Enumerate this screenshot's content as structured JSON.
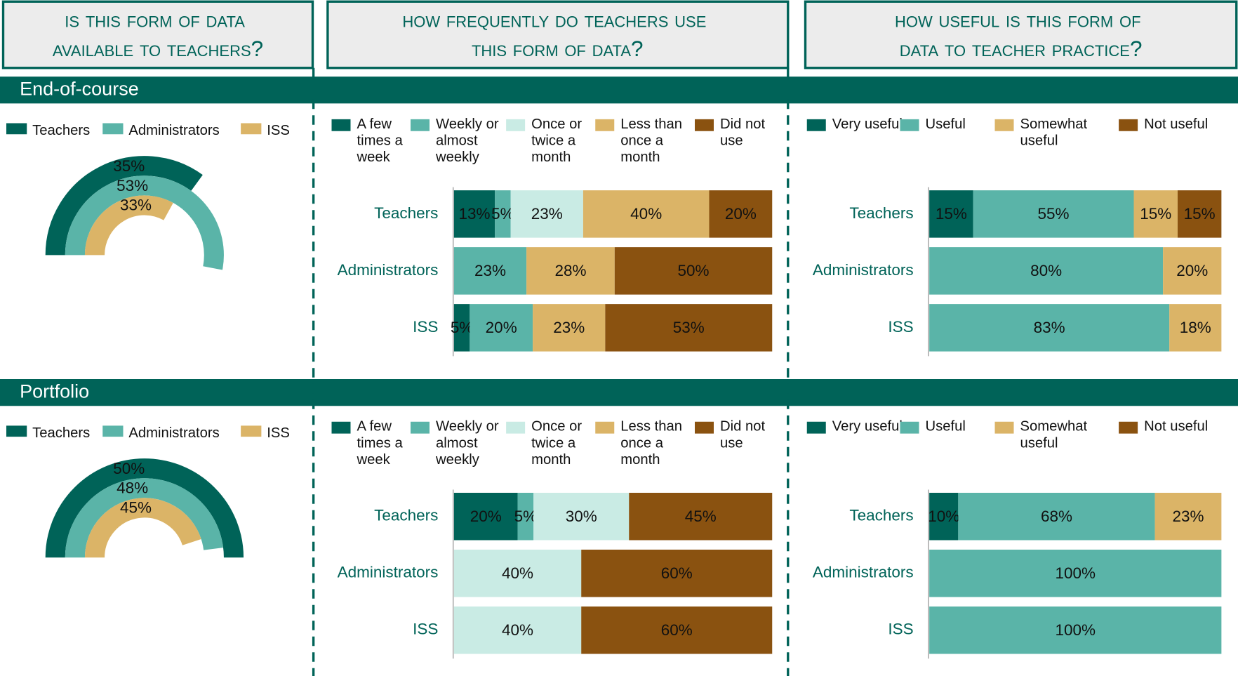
{
  "headers": [
    "Is this form of data available to teachers?",
    "How frequently do teachers use this form of data?",
    "How useful is this form of data to teacher practice?"
  ],
  "sections": [
    "End-of-course",
    "Portfolio"
  ],
  "chart_data": [
    {
      "type": "radial",
      "series": [
        {
          "name": "Teachers",
          "color": "#006358",
          "values": [
            35
          ],
          "value_labels": [
            "35%"
          ]
        },
        {
          "name": "Administrators",
          "color": "#5ab4a8",
          "values": [
            53
          ],
          "value_labels": [
            "53%"
          ]
        },
        {
          "name": "ISS",
          "color": "#dbb467",
          "values": [
            33
          ],
          "value_labels": [
            "33%"
          ]
        }
      ]
    },
    {
      "type": "stacked_bar",
      "categories": [
        "Teachers",
        "Administrators",
        "ISS"
      ],
      "series": [
        {
          "name": "A few times a week",
          "color": "#006358",
          "values": [
            13,
            null,
            5
          ],
          "value_labels": [
            "13%",
            null,
            "5%"
          ]
        },
        {
          "name": "Weekly or almost weekly",
          "color": "#5ab4a8",
          "values": [
            5,
            23,
            20
          ],
          "value_labels": [
            "5%",
            "23%",
            "20%"
          ]
        },
        {
          "name": "Once or twice a month",
          "color": "#c9ebe4",
          "values": [
            23,
            null,
            null
          ],
          "value_labels": [
            "23%",
            null,
            null
          ]
        },
        {
          "name": "Less than once a month",
          "color": "#dbb467",
          "values": [
            40,
            28,
            23
          ],
          "value_labels": [
            "40%",
            "28%",
            "23%"
          ]
        },
        {
          "name": "Did not use",
          "color": "#8a5210",
          "values": [
            20,
            50,
            53
          ],
          "value_labels": [
            "20%",
            "50%",
            "53%"
          ]
        }
      ]
    },
    {
      "type": "stacked_bar",
      "categories": [
        "Teachers",
        "Administrators",
        "ISS"
      ],
      "series": [
        {
          "name": "Very useful",
          "color": "#006358",
          "values": [
            15,
            null,
            null
          ],
          "value_labels": [
            "15%",
            null,
            null
          ]
        },
        {
          "name": "Useful",
          "color": "#5ab4a8",
          "values": [
            55,
            80,
            83
          ],
          "value_labels": [
            "55%",
            "80%",
            "83%"
          ]
        },
        {
          "name": "Somewhat useful",
          "color": "#dbb467",
          "values": [
            15,
            20,
            18
          ],
          "value_labels": [
            "15%",
            "20%",
            "18%"
          ]
        },
        {
          "name": "Not useful",
          "color": "#8a5210",
          "values": [
            15,
            null,
            null
          ],
          "value_labels": [
            "15%",
            null,
            null
          ]
        }
      ]
    },
    {
      "type": "radial",
      "series": [
        {
          "name": "Teachers",
          "color": "#006358",
          "values": [
            50
          ],
          "value_labels": [
            "50%"
          ]
        },
        {
          "name": "Administrators",
          "color": "#5ab4a8",
          "values": [
            48
          ],
          "value_labels": [
            "48%"
          ]
        },
        {
          "name": "ISS",
          "color": "#dbb467",
          "values": [
            45
          ],
          "value_labels": [
            "45%"
          ]
        }
      ]
    },
    {
      "type": "stacked_bar",
      "categories": [
        "Teachers",
        "Administrators",
        "ISS"
      ],
      "series": [
        {
          "name": "A few times a week",
          "color": "#006358",
          "values": [
            20,
            null,
            null
          ],
          "value_labels": [
            "20%",
            null,
            null
          ]
        },
        {
          "name": "Weekly or almost weekly",
          "color": "#5ab4a8",
          "values": [
            5,
            null,
            null
          ],
          "value_labels": [
            "5%",
            null,
            null
          ]
        },
        {
          "name": "Once or twice a month",
          "color": "#c9ebe4",
          "values": [
            30,
            40,
            40
          ],
          "value_labels": [
            "30%",
            "40%",
            "40%"
          ]
        },
        {
          "name": "Less than once a month",
          "color": "#dbb467",
          "values": [
            null,
            null,
            null
          ]
        },
        {
          "name": "Did not use",
          "color": "#8a5210",
          "values": [
            45,
            60,
            60
          ],
          "value_labels": [
            "45%",
            "60%",
            "60%"
          ]
        }
      ]
    },
    {
      "type": "stacked_bar",
      "categories": [
        "Teachers",
        "Administrators",
        "ISS"
      ],
      "series": [
        {
          "name": "Very useful",
          "color": "#006358",
          "values": [
            10,
            null,
            null
          ],
          "value_labels": [
            "10%",
            null,
            null
          ]
        },
        {
          "name": "Useful",
          "color": "#5ab4a8",
          "values": [
            68,
            100,
            100
          ],
          "value_labels": [
            "68%",
            "100%",
            "100%"
          ]
        },
        {
          "name": "Somewhat useful",
          "color": "#dbb467",
          "values": [
            23,
            null,
            null
          ],
          "value_labels": [
            "23%",
            null,
            null
          ]
        },
        {
          "name": "Not useful",
          "color": "#8a5210",
          "values": [
            null,
            null,
            null
          ]
        }
      ]
    }
  ]
}
